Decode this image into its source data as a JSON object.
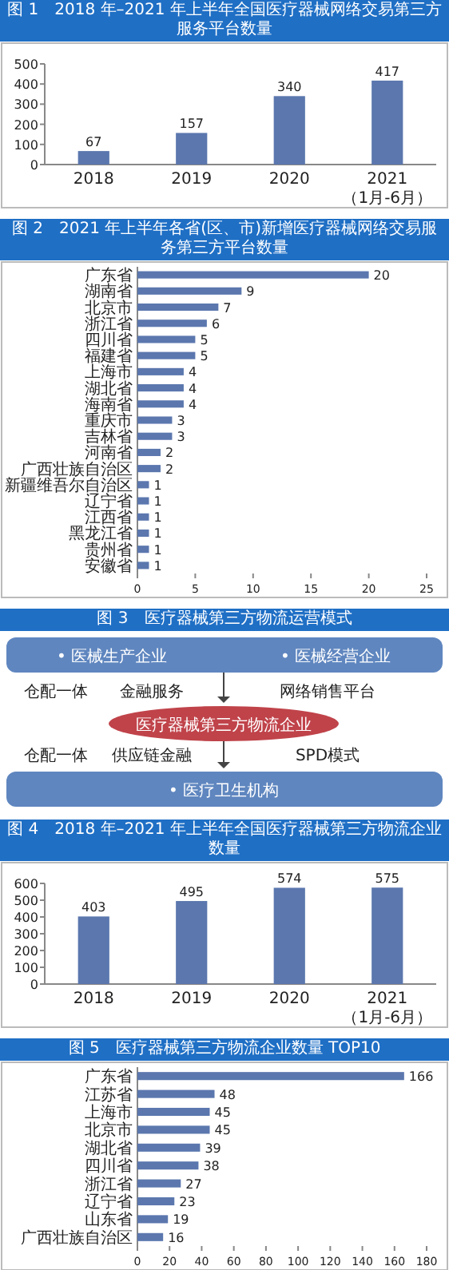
{
  "chart_data": [
    {
      "type": "bar",
      "title": "图 1　2018 年–2021 年上半年全国医疗器械网络交易第三方服务平台数量",
      "categories": [
        "2018",
        "2019",
        "2020",
        "2021（1月-6月）"
      ],
      "values": [
        67,
        157,
        340,
        417
      ],
      "color": "#5b77ae",
      "ylim": [
        0,
        500
      ],
      "yticks": [
        0,
        100,
        200,
        300,
        400,
        500
      ],
      "data_labels": true
    },
    {
      "type": "bar",
      "orientation": "horizontal",
      "title": "图 2　2021 年上半年各省(区、市)新增医疗器械网络交易服务第三方平台数量",
      "categories": [
        "广东省",
        "湖南省",
        "北京市",
        "浙江省",
        "四川省",
        "福建省",
        "上海市",
        "湖北省",
        "海南省",
        "重庆市",
        "吉林省",
        "河南省",
        "广西壮族自治区",
        "新疆维吾尔自治区",
        "辽宁省",
        "江西省",
        "黑龙江省",
        "贵州省",
        "安徽省"
      ],
      "values": [
        20,
        9,
        7,
        6,
        5,
        5,
        4,
        4,
        4,
        3,
        3,
        2,
        2,
        1,
        1,
        1,
        1,
        1,
        1
      ],
      "color": "#5b77ae",
      "xlim": [
        0,
        25
      ],
      "xticks": [
        0,
        5,
        10,
        15,
        20,
        25
      ],
      "data_labels": true
    },
    {
      "type": "other",
      "title": "图 3　医疗器械第三方物流运营模式",
      "annotations": [
        "• 医械生产企业",
        "• 医械经营企业",
        "仓配一体",
        "网络销售平台",
        "金融服务",
        "医疗器械第三方物流企业",
        "仓配一体",
        "SPD模式",
        "供应链金融",
        "• 医疗卫生机构"
      ]
    },
    {
      "type": "bar",
      "title": "图 4　2018 年–2021 年上半年全国医疗器械第三方物流企业数量",
      "categories": [
        "2018",
        "2019",
        "2020",
        "2021（1月-6月）"
      ],
      "values": [
        403,
        495,
        574,
        575
      ],
      "color": "#5b77ae",
      "ylim": [
        0,
        600
      ],
      "yticks": [
        0,
        100,
        200,
        300,
        400,
        500,
        600
      ],
      "data_labels": true
    },
    {
      "type": "bar",
      "orientation": "horizontal",
      "title": "图 5　医疗器械第三方物流企业数量 TOP10",
      "categories": [
        "广东省",
        "江苏省",
        "上海市",
        "北京市",
        "湖北省",
        "四川省",
        "浙江省",
        "辽宁省",
        "山东省",
        "广西壮族自治区"
      ],
      "values": [
        166,
        48,
        45,
        45,
        39,
        38,
        27,
        23,
        19,
        16
      ],
      "color": "#5b77ae",
      "xlim": [
        0,
        180
      ],
      "xticks": [
        0,
        20,
        40,
        60,
        80,
        100,
        120,
        140,
        160,
        180
      ],
      "data_labels": true
    }
  ]
}
